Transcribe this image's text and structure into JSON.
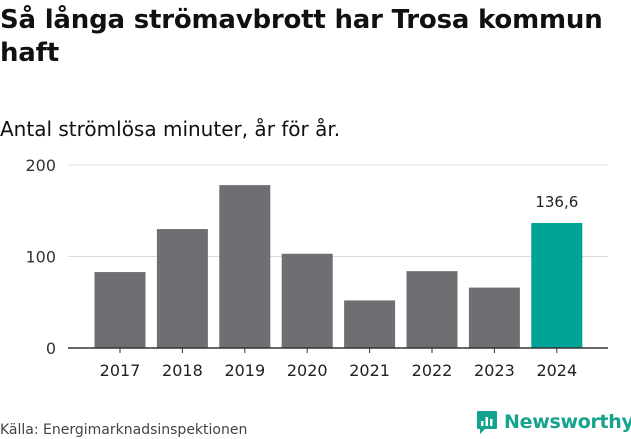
{
  "title": "Så långa strömavbrott har Trosa kommun haft",
  "subtitle": "Antal strömlösa minuter, år för år.",
  "source": "Källa: Energimarknadsinspektionen",
  "logo": {
    "text": "Newsworthy",
    "icon": "newsworthy-logo-icon"
  },
  "colors": {
    "bar": "#6f6e73",
    "highlight": "#00a396",
    "grid": "#dcdcdc",
    "axis": "#333333"
  },
  "chart_data": {
    "type": "bar",
    "categories": [
      "2017",
      "2018",
      "2019",
      "2020",
      "2021",
      "2022",
      "2023",
      "2024"
    ],
    "values": [
      83,
      130,
      178,
      103,
      52,
      84,
      66,
      136.6
    ],
    "highlight_index": 7,
    "data_labels": [
      null,
      null,
      null,
      null,
      null,
      null,
      null,
      "136,6"
    ],
    "yticks": [
      0,
      100,
      200
    ],
    "ylim": [
      0,
      200
    ],
    "grid": true,
    "xlabel": "",
    "ylabel": ""
  }
}
